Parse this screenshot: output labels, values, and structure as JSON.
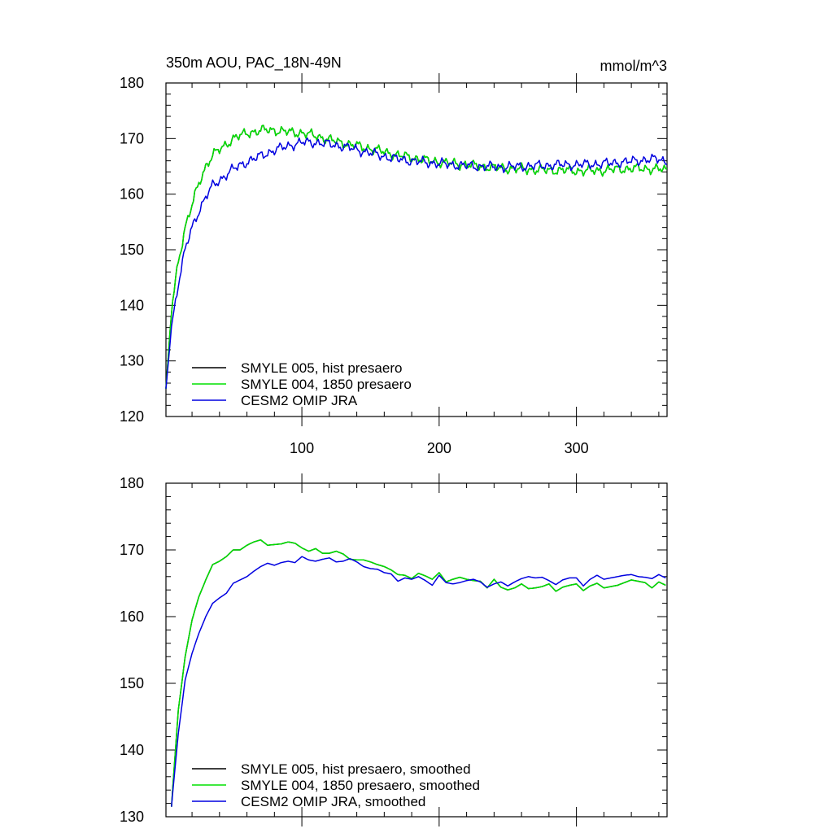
{
  "colors": {
    "smyle005": "#000000",
    "smyle004": "#00e000",
    "omip": "#0000e0"
  },
  "chart_data": [
    {
      "type": "line",
      "title": "350m AOU, PAC_18N-49N",
      "units": "mmol/m^3",
      "xlim": [
        1,
        366
      ],
      "ylim": [
        120,
        180
      ],
      "xticks": [
        100,
        200,
        300
      ],
      "yticks": [
        120,
        130,
        140,
        150,
        160,
        170,
        180
      ],
      "noise": 1.0,
      "legend": "bottom-left",
      "series": [
        {
          "name": "SMYLE 005, hist presaero",
          "color": "#000000",
          "x": [
            1,
            5,
            10,
            15,
            20,
            25,
            30,
            35,
            40,
            45,
            50,
            55,
            60,
            65,
            70,
            75,
            80,
            85,
            90,
            95,
            100,
            110,
            120,
            130,
            140,
            150,
            160,
            170,
            180,
            190,
            200,
            210,
            220,
            230,
            240,
            250,
            260,
            270,
            280,
            290,
            300,
            310,
            320,
            330,
            340,
            350,
            360,
            366
          ],
          "y": [
            125,
            139,
            148,
            154,
            158,
            162,
            165,
            167,
            168,
            169,
            170,
            170.5,
            171,
            171.2,
            171.4,
            171.6,
            171.5,
            171.3,
            171.2,
            171.1,
            171,
            170.5,
            169.8,
            169.2,
            168.7,
            168.2,
            167.6,
            167,
            166.6,
            166.1,
            165.8,
            165.5,
            165.3,
            165,
            164.8,
            164.6,
            164.5,
            164.4,
            164.3,
            164.3,
            164.2,
            164.2,
            164.3,
            164.5,
            164.6,
            164.6,
            164.5,
            164.3
          ]
        },
        {
          "name": "SMYLE 004, 1850 presaero",
          "color": "#00e000",
          "x": [
            1,
            5,
            10,
            15,
            20,
            25,
            30,
            35,
            40,
            45,
            50,
            55,
            60,
            65,
            70,
            75,
            80,
            85,
            90,
            95,
            100,
            110,
            120,
            130,
            140,
            150,
            160,
            170,
            180,
            190,
            200,
            210,
            220,
            230,
            240,
            250,
            260,
            270,
            280,
            290,
            300,
            310,
            320,
            330,
            340,
            350,
            360,
            366
          ],
          "y": [
            125,
            139,
            148,
            154,
            158,
            162,
            165,
            167,
            168,
            169,
            170,
            170.5,
            171,
            171.2,
            171.4,
            171.6,
            171.5,
            171.3,
            171.2,
            171.1,
            171,
            170.5,
            169.8,
            169.2,
            168.7,
            168.2,
            167.6,
            167,
            166.6,
            166.1,
            165.8,
            165.5,
            165.3,
            165,
            164.8,
            164.6,
            164.5,
            164.4,
            164.3,
            164.3,
            164.2,
            164.2,
            164.3,
            164.5,
            164.6,
            164.6,
            164.5,
            164.3
          ]
        },
        {
          "name": "CESM2 OMIP JRA",
          "color": "#0000e0",
          "x": [
            1,
            5,
            10,
            15,
            20,
            25,
            30,
            35,
            40,
            45,
            50,
            55,
            60,
            65,
            70,
            75,
            80,
            85,
            90,
            95,
            100,
            110,
            120,
            130,
            140,
            150,
            160,
            170,
            180,
            190,
            200,
            210,
            220,
            230,
            240,
            250,
            260,
            270,
            280,
            290,
            300,
            310,
            320,
            330,
            340,
            350,
            360,
            366
          ],
          "y": [
            125,
            136,
            144,
            150,
            154,
            157,
            159.5,
            161.5,
            162.5,
            163.5,
            164.5,
            165.2,
            165.8,
            166.3,
            166.9,
            167.4,
            167.9,
            168.3,
            168.7,
            169,
            169.3,
            169.3,
            169,
            168.6,
            168,
            167.4,
            166.8,
            166.3,
            166,
            165.7,
            165.5,
            165.3,
            165.1,
            165,
            164.9,
            164.9,
            165,
            165.1,
            165.2,
            165.3,
            165.3,
            165.4,
            165.5,
            165.7,
            165.9,
            166.2,
            166.3,
            165.8
          ]
        }
      ]
    },
    {
      "type": "line",
      "title": "",
      "units": "",
      "xlim": [
        1,
        366
      ],
      "ylim": [
        130,
        180
      ],
      "xticks": [
        100,
        200,
        300
      ],
      "yticks": [
        130,
        140,
        150,
        160,
        170,
        180
      ],
      "noise": 0,
      "legend": "bottom-left",
      "series": [
        {
          "name": "SMYLE 005, hist presaero, smoothed",
          "color": "#000000",
          "x": [
            5,
            10,
            15,
            20,
            25,
            30,
            35,
            40,
            45,
            50,
            55,
            60,
            65,
            70,
            75,
            80,
            85,
            90,
            95,
            100,
            105,
            110,
            115,
            120,
            125,
            130,
            135,
            140,
            145,
            150,
            155,
            160,
            165,
            170,
            175,
            180,
            185,
            190,
            195,
            200,
            205,
            210,
            215,
            220,
            225,
            230,
            235,
            240,
            245,
            250,
            255,
            260,
            265,
            270,
            275,
            280,
            285,
            290,
            295,
            300,
            305,
            310,
            315,
            320,
            325,
            330,
            335,
            340,
            345,
            350,
            355,
            360,
            365
          ],
          "y": [
            131.5,
            146,
            154,
            159.5,
            163,
            165.5,
            167.8,
            168.3,
            169,
            170,
            170,
            170.7,
            171.2,
            171.5,
            170.7,
            170.8,
            170.9,
            171.2,
            171,
            170.3,
            169.8,
            170.2,
            169.5,
            169.5,
            169.8,
            169.4,
            168.6,
            168.5,
            168.5,
            168.2,
            167.8,
            167.5,
            167,
            166.3,
            166.2,
            165.7,
            166.5,
            166.1,
            165.6,
            166.6,
            165.2,
            165.6,
            165.9,
            165.6,
            165.4,
            165.3,
            164.3,
            165.6,
            164.4,
            164,
            164.3,
            164.9,
            164.2,
            164.3,
            164.5,
            164.9,
            163.8,
            164.4,
            164.7,
            164.9,
            163.9,
            164.6,
            165,
            164.3,
            164.5,
            164.7,
            165.1,
            165.5,
            165.3,
            165.1,
            164.3,
            165.2,
            164.7
          ]
        },
        {
          "name": "SMYLE 004, 1850 presaero, smoothed",
          "color": "#00e000",
          "x": [
            5,
            10,
            15,
            20,
            25,
            30,
            35,
            40,
            45,
            50,
            55,
            60,
            65,
            70,
            75,
            80,
            85,
            90,
            95,
            100,
            105,
            110,
            115,
            120,
            125,
            130,
            135,
            140,
            145,
            150,
            155,
            160,
            165,
            170,
            175,
            180,
            185,
            190,
            195,
            200,
            205,
            210,
            215,
            220,
            225,
            230,
            235,
            240,
            245,
            250,
            255,
            260,
            265,
            270,
            275,
            280,
            285,
            290,
            295,
            300,
            305,
            310,
            315,
            320,
            325,
            330,
            335,
            340,
            345,
            350,
            355,
            360,
            365
          ],
          "y": [
            131.5,
            146,
            154,
            159.5,
            163,
            165.5,
            167.8,
            168.3,
            169,
            170,
            170,
            170.7,
            171.2,
            171.5,
            170.7,
            170.8,
            170.9,
            171.2,
            171,
            170.3,
            169.8,
            170.2,
            169.5,
            169.5,
            169.8,
            169.4,
            168.6,
            168.5,
            168.5,
            168.2,
            167.8,
            167.5,
            167,
            166.3,
            166.2,
            165.7,
            166.5,
            166.1,
            165.6,
            166.6,
            165.2,
            165.6,
            165.9,
            165.6,
            165.4,
            165.3,
            164.3,
            165.6,
            164.4,
            164,
            164.3,
            164.9,
            164.2,
            164.3,
            164.5,
            164.9,
            163.8,
            164.4,
            164.7,
            164.9,
            163.9,
            164.6,
            165,
            164.3,
            164.5,
            164.7,
            165.1,
            165.5,
            165.3,
            165.1,
            164.3,
            165.2,
            164.7
          ]
        },
        {
          "name": "CESM2 OMIP JRA, smoothed",
          "color": "#0000e0",
          "x": [
            5,
            10,
            15,
            20,
            25,
            30,
            35,
            40,
            45,
            50,
            55,
            60,
            65,
            70,
            75,
            80,
            85,
            90,
            95,
            100,
            105,
            110,
            115,
            120,
            125,
            130,
            135,
            140,
            145,
            150,
            155,
            160,
            165,
            170,
            175,
            180,
            185,
            190,
            195,
            200,
            205,
            210,
            215,
            220,
            225,
            230,
            235,
            240,
            245,
            250,
            255,
            260,
            265,
            270,
            275,
            280,
            285,
            290,
            295,
            300,
            305,
            310,
            315,
            320,
            325,
            330,
            335,
            340,
            345,
            350,
            355,
            360,
            365
          ],
          "y": [
            131.5,
            142.5,
            150.5,
            154.5,
            157.5,
            160,
            162,
            162.8,
            163.5,
            165,
            165.5,
            166,
            166.8,
            167.5,
            168,
            167.7,
            168.1,
            168.3,
            168.1,
            169,
            168.5,
            168.3,
            168.6,
            168.8,
            168.2,
            168.3,
            168.7,
            168.2,
            167.5,
            167.2,
            167.1,
            166.6,
            166.4,
            165.3,
            165.8,
            165.6,
            166,
            165.4,
            164.7,
            166.2,
            165.1,
            164.9,
            165.1,
            165.4,
            165.6,
            165.2,
            164.4,
            164.9,
            165.2,
            164.6,
            165.2,
            165.7,
            166,
            165.8,
            165.9,
            165.4,
            164.8,
            165.5,
            165.8,
            165.8,
            164.6,
            165.6,
            166.2,
            165.6,
            165.8,
            166,
            166.2,
            166.3,
            166,
            165.9,
            165.7,
            166.3,
            165.8
          ]
        }
      ]
    }
  ]
}
